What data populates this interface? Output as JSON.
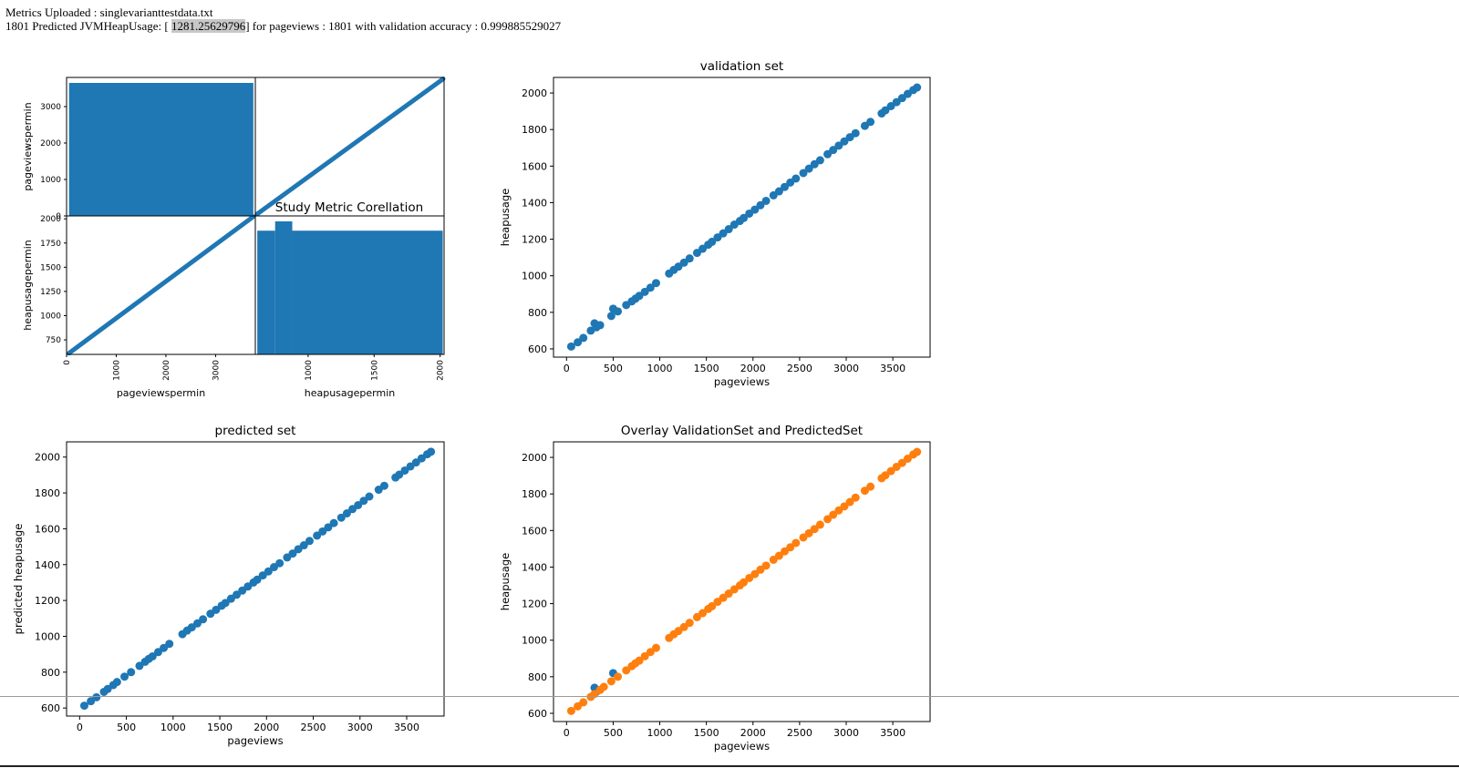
{
  "header": {
    "uploaded_prefix": "Metrics Uploaded : ",
    "uploaded_file": "singlevarianttestdata.txt",
    "prediction_prefix": "1801 Predicted JVMHeapUsage: [",
    "prediction_value": "1281.25629796",
    "prediction_suffix": "] for pageviews : 1801 with validation accuracy : 0.999885529027"
  },
  "colors": {
    "blue": "#1f77b4",
    "orange": "#ff7f0e"
  },
  "chart_data": [
    {
      "type": "scatter-matrix",
      "title": "Study Metric Corellation",
      "variables": [
        "pageviewspermin",
        "heapusagepermin"
      ],
      "ranges": {
        "pageviewspermin": [
          0,
          3800
        ],
        "heapusagepermin": [
          600,
          2030
        ]
      },
      "xticks": {
        "pageviewspermin": [
          0,
          1000,
          2000,
          3000
        ],
        "heapusagepermin": [
          1000,
          1500,
          2000
        ]
      },
      "yticks": {
        "pageviewspermin": [
          0,
          1000,
          2000,
          3000
        ],
        "heapusagepermin": [
          750,
          1000,
          1250,
          1500,
          1750,
          2000
        ]
      },
      "histograms": {
        "pageviewspermin": {
          "bins": [
            [
              50,
              3760,
              1
            ]
          ]
        },
        "heapusagepermin": {
          "bins": [
            [
              615,
              750,
              0.93
            ],
            [
              750,
              880,
              1
            ],
            [
              880,
              2020,
              0.93
            ]
          ]
        }
      },
      "relation": {
        "slope": 0.38,
        "intercept": 594,
        "xrange": [
          50,
          3760
        ]
      }
    },
    {
      "type": "scatter",
      "title": "validation set",
      "xlabel": "pageviews",
      "ylabel": "heapusage",
      "xlim": [
        -140,
        3900
      ],
      "ylim": [
        555,
        2085
      ],
      "xticks": [
        0,
        500,
        1000,
        1500,
        2000,
        2500,
        3000,
        3500
      ],
      "yticks": [
        600,
        800,
        1000,
        1200,
        1400,
        1600,
        1800,
        2000
      ],
      "series": [
        {
          "color": "#1f77b4",
          "points": [
            [
              50,
              613
            ],
            [
              120,
              636
            ],
            [
              180,
              660
            ],
            [
              260,
              700
            ],
            [
              300,
              740
            ],
            [
              320,
              718
            ],
            [
              360,
              730
            ],
            [
              480,
              780
            ],
            [
              500,
              820
            ],
            [
              550,
              805
            ],
            [
              640,
              840
            ],
            [
              700,
              860
            ],
            [
              740,
              875
            ],
            [
              780,
              890
            ],
            [
              840,
              912
            ],
            [
              900,
              935
            ],
            [
              960,
              960
            ],
            [
              1100,
              1012
            ],
            [
              1150,
              1032
            ],
            [
              1200,
              1050
            ],
            [
              1260,
              1072
            ],
            [
              1320,
              1095
            ],
            [
              1400,
              1125
            ],
            [
              1460,
              1148
            ],
            [
              1520,
              1170
            ],
            [
              1560,
              1186
            ],
            [
              1620,
              1210
            ],
            [
              1680,
              1232
            ],
            [
              1740,
              1255
            ],
            [
              1800,
              1280
            ],
            [
              1860,
              1300
            ],
            [
              1900,
              1316
            ],
            [
              1960,
              1340
            ],
            [
              2020,
              1362
            ],
            [
              2080,
              1386
            ],
            [
              2140,
              1410
            ],
            [
              2220,
              1440
            ],
            [
              2280,
              1462
            ],
            [
              2340,
              1486
            ],
            [
              2400,
              1510
            ],
            [
              2460,
              1532
            ],
            [
              2540,
              1562
            ],
            [
              2600,
              1586
            ],
            [
              2660,
              1610
            ],
            [
              2720,
              1632
            ],
            [
              2800,
              1665
            ],
            [
              2860,
              1688
            ],
            [
              2920,
              1712
            ],
            [
              2980,
              1735
            ],
            [
              3040,
              1758
            ],
            [
              3100,
              1780
            ],
            [
              3200,
              1820
            ],
            [
              3260,
              1842
            ],
            [
              3380,
              1888
            ],
            [
              3420,
              1905
            ],
            [
              3480,
              1928
            ],
            [
              3540,
              1950
            ],
            [
              3600,
              1972
            ],
            [
              3660,
              1995
            ],
            [
              3720,
              2016
            ],
            [
              3760,
              2030
            ]
          ]
        }
      ]
    },
    {
      "type": "scatter",
      "title": "predicted set",
      "xlabel": "pageviews",
      "ylabel": "predicted heapusage",
      "xlim": [
        -140,
        3900
      ],
      "ylim": [
        555,
        2085
      ],
      "xticks": [
        0,
        500,
        1000,
        1500,
        2000,
        2500,
        3000,
        3500
      ],
      "yticks": [
        600,
        800,
        1000,
        1200,
        1400,
        1600,
        1800,
        2000
      ],
      "series": [
        {
          "color": "#1f77b4",
          "points": [
            [
              50,
              613
            ],
            [
              120,
              638
            ],
            [
              180,
              660
            ],
            [
              260,
              690
            ],
            [
              300,
              706
            ],
            [
              360,
              728
            ],
            [
              400,
              745
            ],
            [
              480,
              775
            ],
            [
              550,
              800
            ],
            [
              640,
              835
            ],
            [
              700,
              858
            ],
            [
              740,
              874
            ],
            [
              780,
              888
            ],
            [
              840,
              912
            ],
            [
              900,
              935
            ],
            [
              960,
              958
            ],
            [
              1100,
              1012
            ],
            [
              1150,
              1032
            ],
            [
              1200,
              1050
            ],
            [
              1260,
              1072
            ],
            [
              1320,
              1095
            ],
            [
              1400,
              1126
            ],
            [
              1460,
              1148
            ],
            [
              1520,
              1171
            ],
            [
              1560,
              1186
            ],
            [
              1620,
              1210
            ],
            [
              1680,
              1232
            ],
            [
              1740,
              1255
            ],
            [
              1800,
              1278
            ],
            [
              1860,
              1300
            ],
            [
              1900,
              1316
            ],
            [
              1960,
              1340
            ],
            [
              2020,
              1362
            ],
            [
              2080,
              1386
            ],
            [
              2140,
              1408
            ],
            [
              2220,
              1440
            ],
            [
              2280,
              1462
            ],
            [
              2340,
              1486
            ],
            [
              2400,
              1508
            ],
            [
              2460,
              1532
            ],
            [
              2540,
              1562
            ],
            [
              2600,
              1585
            ],
            [
              2660,
              1608
            ],
            [
              2720,
              1632
            ],
            [
              2800,
              1662
            ],
            [
              2860,
              1686
            ],
            [
              2920,
              1710
            ],
            [
              2980,
              1732
            ],
            [
              3040,
              1756
            ],
            [
              3100,
              1780
            ],
            [
              3200,
              1818
            ],
            [
              3260,
              1840
            ],
            [
              3380,
              1886
            ],
            [
              3420,
              1902
            ],
            [
              3480,
              1925
            ],
            [
              3540,
              1948
            ],
            [
              3600,
              1970
            ],
            [
              3660,
              1993
            ],
            [
              3720,
              2016
            ],
            [
              3760,
              2030
            ]
          ]
        }
      ]
    },
    {
      "type": "scatter",
      "title": "Overlay ValidationSet and PredictedSet",
      "xlabel": "pageviews",
      "ylabel": "heapusage",
      "xlim": [
        -140,
        3900
      ],
      "ylim": [
        555,
        2085
      ],
      "xticks": [
        0,
        500,
        1000,
        1500,
        2000,
        2500,
        3000,
        3500
      ],
      "yticks": [
        600,
        800,
        1000,
        1200,
        1400,
        1600,
        1800,
        2000
      ],
      "series": [
        {
          "color": "#1f77b4",
          "points": [
            [
              300,
              740
            ],
            [
              320,
              718
            ],
            [
              500,
              820
            ]
          ]
        },
        {
          "color": "#ff7f0e",
          "points": [
            [
              50,
              613
            ],
            [
              120,
              638
            ],
            [
              180,
              660
            ],
            [
              260,
              690
            ],
            [
              300,
              706
            ],
            [
              360,
              728
            ],
            [
              400,
              745
            ],
            [
              480,
              775
            ],
            [
              550,
              800
            ],
            [
              640,
              835
            ],
            [
              700,
              858
            ],
            [
              740,
              874
            ],
            [
              780,
              888
            ],
            [
              840,
              912
            ],
            [
              900,
              935
            ],
            [
              960,
              958
            ],
            [
              1100,
              1012
            ],
            [
              1150,
              1032
            ],
            [
              1200,
              1050
            ],
            [
              1260,
              1072
            ],
            [
              1320,
              1095
            ],
            [
              1400,
              1126
            ],
            [
              1460,
              1148
            ],
            [
              1520,
              1171
            ],
            [
              1560,
              1186
            ],
            [
              1620,
              1210
            ],
            [
              1680,
              1232
            ],
            [
              1740,
              1255
            ],
            [
              1800,
              1278
            ],
            [
              1860,
              1300
            ],
            [
              1900,
              1316
            ],
            [
              1960,
              1340
            ],
            [
              2020,
              1362
            ],
            [
              2080,
              1386
            ],
            [
              2140,
              1408
            ],
            [
              2220,
              1440
            ],
            [
              2280,
              1462
            ],
            [
              2340,
              1486
            ],
            [
              2400,
              1508
            ],
            [
              2460,
              1532
            ],
            [
              2540,
              1562
            ],
            [
              2600,
              1585
            ],
            [
              2660,
              1608
            ],
            [
              2720,
              1632
            ],
            [
              2800,
              1662
            ],
            [
              2860,
              1686
            ],
            [
              2920,
              1710
            ],
            [
              2980,
              1732
            ],
            [
              3040,
              1756
            ],
            [
              3100,
              1780
            ],
            [
              3200,
              1818
            ],
            [
              3260,
              1840
            ],
            [
              3380,
              1886
            ],
            [
              3420,
              1902
            ],
            [
              3480,
              1925
            ],
            [
              3540,
              1948
            ],
            [
              3600,
              1970
            ],
            [
              3660,
              1993
            ],
            [
              3720,
              2016
            ],
            [
              3760,
              2030
            ]
          ]
        }
      ]
    }
  ]
}
